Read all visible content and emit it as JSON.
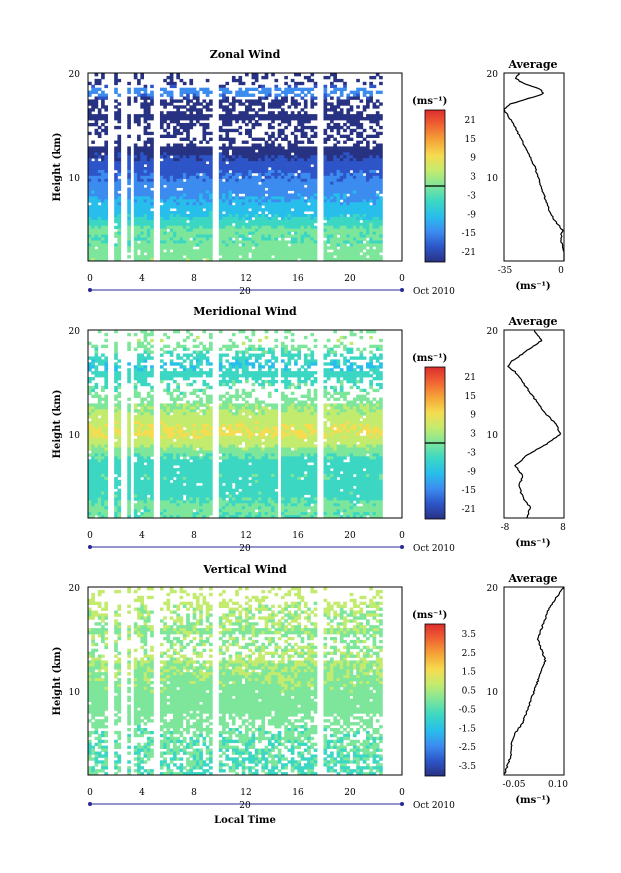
{
  "panels": [
    {
      "title": "Zonal Wind",
      "ylabel": "Height (km)",
      "unit_label": "(ms⁻¹)",
      "avg_title": "Average",
      "avg_unit": "(ms⁻¹)",
      "y_ticks": [
        "20",
        "10"
      ],
      "x_ticks": [
        "0",
        "4",
        "8",
        "12",
        "16",
        "20",
        "0"
      ],
      "date_day": "20",
      "date_label": "Oct 2010",
      "colorbar_ticks": [
        "21",
        "15",
        "9",
        "3",
        "-3",
        "-9",
        "-15",
        "-21"
      ],
      "avg_xticks": [
        "-35",
        "0"
      ]
    },
    {
      "title": "Meridional Wind",
      "ylabel": "Height (km)",
      "unit_label": "(ms⁻¹)",
      "avg_title": "Average",
      "avg_unit": "(ms⁻¹)",
      "y_ticks": [
        "20",
        "10"
      ],
      "x_ticks": [
        "0",
        "4",
        "8",
        "12",
        "16",
        "20",
        "0"
      ],
      "date_day": "20",
      "date_label": "Oct 2010",
      "colorbar_ticks": [
        "21",
        "15",
        "9",
        "3",
        "-3",
        "-9",
        "-15",
        "-21"
      ],
      "avg_xticks": [
        "-8",
        "8"
      ]
    },
    {
      "title": "Vertical Wind",
      "ylabel": "Height (km)",
      "unit_label": "(ms⁻¹)",
      "avg_title": "Average",
      "avg_unit": "(ms⁻¹)",
      "y_ticks": [
        "20",
        "10"
      ],
      "x_ticks": [
        "0",
        "4",
        "8",
        "12",
        "16",
        "20",
        "0"
      ],
      "date_day": "20",
      "date_label": "Oct 2010",
      "colorbar_ticks": [
        "3.5",
        "2.5",
        "1.5",
        "0.5",
        "-0.5",
        "-1.5",
        "-2.5",
        "-3.5"
      ],
      "avg_xticks": [
        "-0.05",
        "0.10"
      ]
    }
  ],
  "xlabel": "Local Time",
  "chart_data": [
    {
      "type": "heatmap",
      "title": "Zonal Wind",
      "xlabel": "Local Time",
      "ylabel": "Height (km)",
      "xlim": [
        0,
        24
      ],
      "ylim": [
        2,
        20
      ],
      "clim": [
        -24,
        24
      ],
      "data_gaps_hours": [
        [
          1.5,
          2.0
        ],
        [
          2.6,
          3.0
        ],
        [
          3.2,
          3.5
        ],
        [
          5.0,
          5.6
        ],
        [
          9.6,
          9.9
        ],
        [
          17.6,
          17.9
        ],
        [
          22.5,
          24.0
        ]
      ],
      "profile": [
        {
          "h": 2.0,
          "v": 1
        },
        {
          "h": 3.0,
          "v": 0
        },
        {
          "h": 4.0,
          "v": -2
        },
        {
          "h": 5.0,
          "v": -1
        },
        {
          "h": 6.0,
          "v": -6
        },
        {
          "h": 7.0,
          "v": -9
        },
        {
          "h": 8.0,
          "v": -11
        },
        {
          "h": 9.0,
          "v": -13
        },
        {
          "h": 10.0,
          "v": -15
        },
        {
          "h": 11.0,
          "v": -17
        },
        {
          "h": 12.0,
          "v": -20
        },
        {
          "h": 13.0,
          "v": -23
        },
        {
          "h": 14.0,
          "v": -26
        },
        {
          "h": 15.0,
          "v": -29
        },
        {
          "h": 16.0,
          "v": -33
        },
        {
          "h": 16.5,
          "v": -35
        },
        {
          "h": 17.0,
          "v": -32
        },
        {
          "h": 17.5,
          "v": -22
        },
        {
          "h": 18.0,
          "v": -12
        },
        {
          "h": 18.5,
          "v": -14
        },
        {
          "h": 19.0,
          "v": -24
        },
        {
          "h": 19.5,
          "v": -28
        },
        {
          "h": 20.0,
          "v": -26
        }
      ],
      "profile_xlim": [
        -35,
        0
      ]
    },
    {
      "type": "heatmap",
      "title": "Meridional Wind",
      "xlabel": "Local Time",
      "ylabel": "Height (km)",
      "xlim": [
        0,
        24
      ],
      "ylim": [
        2,
        20
      ],
      "clim": [
        -24,
        24
      ],
      "data_gaps_hours": [
        [
          1.5,
          2.0
        ],
        [
          2.6,
          3.0
        ],
        [
          3.2,
          3.5
        ],
        [
          5.0,
          5.6
        ],
        [
          9.6,
          9.9
        ],
        [
          14.5,
          14.8
        ],
        [
          17.6,
          17.9
        ],
        [
          22.5,
          24.0
        ]
      ],
      "profile": [
        {
          "h": 2.0,
          "v": -2
        },
        {
          "h": 3.0,
          "v": -1
        },
        {
          "h": 4.0,
          "v": -3
        },
        {
          "h": 5.0,
          "v": -4
        },
        {
          "h": 6.0,
          "v": -3
        },
        {
          "h": 7.0,
          "v": -5
        },
        {
          "h": 8.0,
          "v": -2
        },
        {
          "h": 9.0,
          "v": 3
        },
        {
          "h": 10.0,
          "v": 7
        },
        {
          "h": 11.0,
          "v": 6
        },
        {
          "h": 12.0,
          "v": 3
        },
        {
          "h": 13.0,
          "v": 1
        },
        {
          "h": 14.0,
          "v": -1
        },
        {
          "h": 15.0,
          "v": -3
        },
        {
          "h": 16.0,
          "v": -5
        },
        {
          "h": 16.5,
          "v": -7
        },
        {
          "h": 17.0,
          "v": -6
        },
        {
          "h": 17.5,
          "v": -4
        },
        {
          "h": 18.0,
          "v": -2
        },
        {
          "h": 18.5,
          "v": 0
        },
        {
          "h": 19.0,
          "v": 2
        },
        {
          "h": 19.5,
          "v": 1
        },
        {
          "h": 20.0,
          "v": 0
        }
      ],
      "profile_xlim": [
        -8,
        8
      ]
    },
    {
      "type": "heatmap",
      "title": "Vertical Wind",
      "xlabel": "Local Time",
      "ylabel": "Height (km)",
      "xlim": [
        0,
        24
      ],
      "ylim": [
        2,
        20
      ],
      "clim": [
        -4,
        4
      ],
      "data_gaps_hours": [
        [
          1.5,
          2.0
        ],
        [
          2.6,
          3.0
        ],
        [
          3.2,
          3.5
        ],
        [
          5.0,
          5.6
        ],
        [
          9.6,
          9.9
        ],
        [
          17.6,
          17.9
        ],
        [
          22.5,
          24.0
        ]
      ],
      "profile": [
        {
          "h": 2.0,
          "v": -0.06
        },
        {
          "h": 3.0,
          "v": -0.05
        },
        {
          "h": 4.0,
          "v": -0.04
        },
        {
          "h": 5.0,
          "v": -0.04
        },
        {
          "h": 6.0,
          "v": -0.03
        },
        {
          "h": 7.0,
          "v": -0.01
        },
        {
          "h": 8.0,
          "v": 0.0
        },
        {
          "h": 9.0,
          "v": 0.01
        },
        {
          "h": 10.0,
          "v": 0.02
        },
        {
          "h": 11.0,
          "v": 0.03
        },
        {
          "h": 12.0,
          "v": 0.04
        },
        {
          "h": 13.0,
          "v": 0.05
        },
        {
          "h": 14.0,
          "v": 0.04
        },
        {
          "h": 15.0,
          "v": 0.03
        },
        {
          "h": 16.0,
          "v": 0.04
        },
        {
          "h": 17.0,
          "v": 0.05
        },
        {
          "h": 18.0,
          "v": 0.06
        },
        {
          "h": 19.0,
          "v": 0.08
        },
        {
          "h": 20.0,
          "v": 0.1
        }
      ],
      "profile_xlim": [
        -0.06,
        0.1
      ]
    }
  ],
  "colormap": [
    "#283282",
    "#2d55c8",
    "#3c8cf0",
    "#28beeb",
    "#3cd7c3",
    "#7de69b",
    "#c3eb6e",
    "#f5dc50",
    "#f5a537",
    "#f06432",
    "#dc2d2d"
  ]
}
